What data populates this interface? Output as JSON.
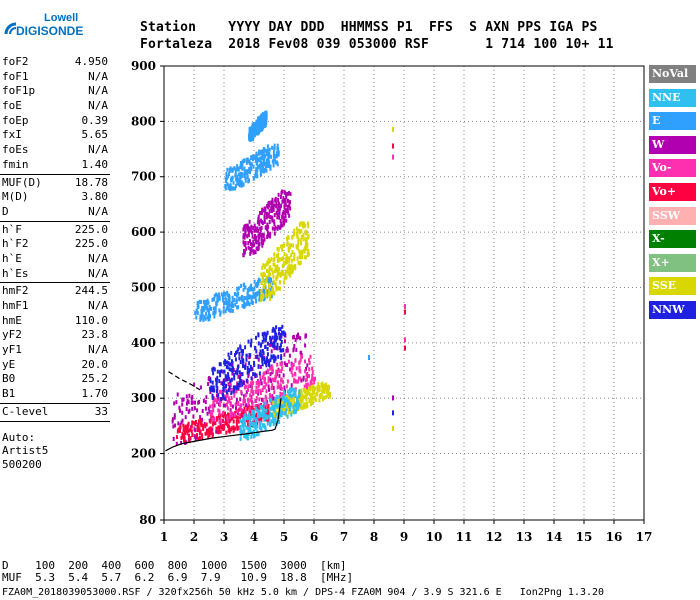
{
  "logo": {
    "line1": "Lowell",
    "line2": "DIGISONDE"
  },
  "header": {
    "keys": [
      "Station",
      "YYYY",
      "DAY",
      "DDD",
      "HHMMSS",
      "P1",
      "FFS",
      "S",
      "AXN",
      "PPS",
      "IGA",
      "PS"
    ],
    "values": [
      "Fortaleza",
      "2018",
      "Fev08",
      "039",
      "053000",
      "RSF",
      "",
      "1",
      "714",
      "100",
      "10+",
      "11"
    ]
  },
  "parameters": {
    "group1": [
      {
        "name": "foF2",
        "value": "4.950"
      },
      {
        "name": "foF1",
        "value": "N/A"
      },
      {
        "name": "foF1p",
        "value": "N/A"
      },
      {
        "name": "foE",
        "value": "N/A"
      },
      {
        "name": "foEp",
        "value": "0.39"
      },
      {
        "name": "fxI",
        "value": "5.65"
      },
      {
        "name": "foEs",
        "value": "N/A"
      },
      {
        "name": "fmin",
        "value": "1.40"
      }
    ],
    "group2": [
      {
        "name": "MUF(D)",
        "value": "18.78"
      },
      {
        "name": "M(D)",
        "value": "3.80"
      },
      {
        "name": "D",
        "value": "N/A"
      }
    ],
    "group3": [
      {
        "name": "h`F",
        "value": "225.0"
      },
      {
        "name": "h`F2",
        "value": "225.0"
      },
      {
        "name": "h`E",
        "value": "N/A"
      },
      {
        "name": "h`Es",
        "value": "N/A"
      }
    ],
    "group4": [
      {
        "name": "hmF2",
        "value": "244.5"
      },
      {
        "name": "hmF1",
        "value": "N/A"
      },
      {
        "name": "hmE",
        "value": "110.0"
      },
      {
        "name": "yF2",
        "value": "23.8"
      },
      {
        "name": "yF1",
        "value": "N/A"
      },
      {
        "name": "yE",
        "value": "20.0"
      },
      {
        "name": "B0",
        "value": "25.2"
      },
      {
        "name": "B1",
        "value": "1.70"
      }
    ],
    "group5": [
      {
        "name": "C-level",
        "value": "33"
      }
    ],
    "auto": [
      "Auto:",
      "Artist5",
      "500200"
    ]
  },
  "legend": [
    {
      "label": "NoVal",
      "color": "#808080"
    },
    {
      "label": "NNE",
      "color": "#30c0f0"
    },
    {
      "label": "E",
      "color": "#30a0ff"
    },
    {
      "label": "W",
      "color": "#b000b0"
    },
    {
      "label": "Vo-",
      "color": "#ff30b0"
    },
    {
      "label": "Vo+",
      "color": "#ff0040"
    },
    {
      "label": "SSW",
      "color": "#ffb0b0"
    },
    {
      "label": "X-",
      "color": "#008000"
    },
    {
      "label": "X+",
      "color": "#80c080"
    },
    {
      "label": "SSE",
      "color": "#d8d800"
    },
    {
      "label": "NNW",
      "color": "#2020e0"
    }
  ],
  "bottom": {
    "d_row": [
      "D",
      "100",
      "200",
      "400",
      "600",
      "800",
      "1000",
      "1500",
      "3000",
      "[km]"
    ],
    "muf_row": [
      "MUF",
      "5.3",
      "5.4",
      "5.7",
      "6.2",
      "6.9",
      "7.9",
      "10.9",
      "18.8",
      "[MHz]"
    ],
    "footer": "FZA0M_2018039053000.RSF / 320fx256h 50 kHz 5.0 km / DPS-4 FZA0M 904 / 3.9 S 321.6 E   Ion2Png 1.3.20"
  },
  "chart_data": {
    "type": "scatter",
    "xlim": [
      1,
      17
    ],
    "ylim": [
      80,
      900
    ],
    "xticks": [
      1,
      2,
      3,
      4,
      5,
      6,
      7,
      8,
      9,
      10,
      11,
      12,
      13,
      14,
      15,
      16,
      17
    ],
    "yticks": [
      80,
      200,
      300,
      400,
      500,
      600,
      700,
      800,
      900
    ],
    "grid": true,
    "legend_position": "right",
    "clusters": [
      {
        "name": "E",
        "x": [
          3.0,
          4.8
        ],
        "y": [
          680,
          760
        ]
      },
      {
        "name": "E",
        "x": [
          3.8,
          4.4
        ],
        "y": [
          770,
          820
        ]
      },
      {
        "name": "E",
        "x": [
          2.0,
          4.6
        ],
        "y": [
          445,
          520
        ]
      },
      {
        "name": "W",
        "x": [
          1.2,
          5.8
        ],
        "y": [
          220,
          420
        ]
      },
      {
        "name": "Vo+",
        "x": [
          1.4,
          4.5
        ],
        "y": [
          225,
          290
        ]
      },
      {
        "name": "Vo-",
        "x": [
          2.5,
          6.0
        ],
        "y": [
          260,
          380
        ]
      },
      {
        "name": "SSE",
        "x": [
          4.5,
          6.5
        ],
        "y": [
          270,
          330
        ]
      },
      {
        "name": "NNE",
        "x": [
          3.5,
          5.5
        ],
        "y": [
          230,
          320
        ]
      },
      {
        "name": "NNW",
        "x": [
          2.5,
          5.0
        ],
        "y": [
          300,
          440
        ]
      },
      {
        "name": "W",
        "x": [
          3.6,
          5.2
        ],
        "y": [
          560,
          680
        ]
      },
      {
        "name": "SSE",
        "x": [
          4.2,
          5.8
        ],
        "y": [
          480,
          620
        ]
      }
    ],
    "sparse_points": [
      {
        "x": 8.6,
        "y": 790,
        "series": "SSE"
      },
      {
        "x": 8.6,
        "y": 760,
        "series": "Vo+"
      },
      {
        "x": 8.6,
        "y": 740,
        "series": "Vo-"
      },
      {
        "x": 9.0,
        "y": 470,
        "series": "Vo-"
      },
      {
        "x": 9.0,
        "y": 460,
        "series": "Vo+"
      },
      {
        "x": 9.0,
        "y": 410,
        "series": "Vo-"
      },
      {
        "x": 9.0,
        "y": 395,
        "series": "Vo+"
      },
      {
        "x": 7.8,
        "y": 378,
        "series": "E"
      },
      {
        "x": 8.6,
        "y": 305,
        "series": "W"
      },
      {
        "x": 8.6,
        "y": 278,
        "series": "NNW"
      },
      {
        "x": 8.6,
        "y": 250,
        "series": "SSE"
      }
    ],
    "trace_lines": [
      {
        "name": "profile",
        "style": "solid",
        "x": [
          1.05,
          1.3,
          1.6,
          2.0,
          2.6,
          3.2,
          3.8,
          4.3,
          4.6,
          4.7,
          4.8,
          4.9
        ],
        "y": [
          205,
          212,
          218,
          222,
          228,
          232,
          236,
          240,
          242,
          244,
          260,
          300
        ]
      },
      {
        "name": "profile-extension",
        "style": "dashed",
        "x": [
          1.15,
          1.5,
          1.9,
          2.2
        ],
        "y": [
          348,
          336,
          325,
          315
        ]
      }
    ]
  }
}
